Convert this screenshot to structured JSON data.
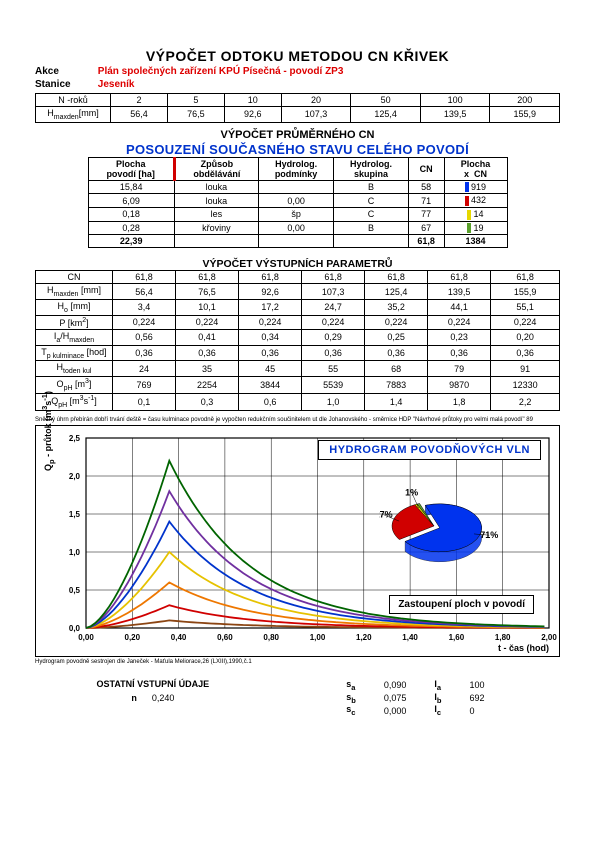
{
  "title": "VÝPOČET ODTOKU METODOU  CN  KŘIVEK",
  "meta": {
    "akce_label": "Akce",
    "akce_value": "Plán společných zařízení KPÚ Písečná - povodí ZP3",
    "stanice_label": "Stanice",
    "stanice_value": "Jeseník"
  },
  "top_table": {
    "rows": [
      {
        "label": "N -roků",
        "cells": [
          "2",
          "5",
          "10",
          "20",
          "50",
          "100",
          "200"
        ]
      },
      {
        "label": "Hmaxden[mm]",
        "cells": [
          "56,4",
          "76,5",
          "92,6",
          "107,3",
          "125,4",
          "139,5",
          "155,9"
        ]
      }
    ]
  },
  "section_avg": "VÝPOČET PRŮMĚRNÉHO CN",
  "section_blue": "POSOUZENÍ SOUČASNÉHO STAVU CELÉHO POVODÍ",
  "assess_table": {
    "headers": [
      "Plocha\npovodí [ha]",
      "Způsob\nobdělávání",
      "Hydrolog.\npodmínky",
      "Hydrolog.\nskupina",
      "CN",
      "Plocha\nx   CN"
    ],
    "rows": [
      {
        "cells": [
          "15,84",
          "louka",
          "",
          "B",
          "58",
          "919"
        ],
        "bar": "#0033ee"
      },
      {
        "cells": [
          "6,09",
          "louka",
          "0,00",
          "C",
          "71",
          "432"
        ],
        "bar": "#d00000"
      },
      {
        "cells": [
          "0,18",
          "les",
          "šp",
          "C",
          "77",
          "14"
        ],
        "bar": "#e6d800"
      },
      {
        "cells": [
          "0,28",
          "křoviny",
          "0,00",
          "B",
          "67",
          "19"
        ],
        "bar": "#5aa02c"
      }
    ],
    "totals": {
      "area": "22,39",
      "cn": "61,8",
      "xcn": "1384"
    }
  },
  "params_title": "VÝPOČET VÝSTUPNÍCH PARAMETRŮ",
  "params_table": {
    "labels": [
      "CN",
      "Hmaxden [mm]",
      "Ho [mm]",
      "P [km²]",
      "Ia/Hmaxden",
      "Tp kulminace [hod]",
      "Htoden kul",
      "OpH [m³]",
      "QpH [m³s⁻¹]"
    ],
    "rows": [
      [
        "61,8",
        "61,8",
        "61,8",
        "61,8",
        "61,8",
        "61,8",
        "61,8"
      ],
      [
        "56,4",
        "76,5",
        "92,6",
        "107,3",
        "125,4",
        "139,5",
        "155,9"
      ],
      [
        "3,4",
        "10,1",
        "17,2",
        "24,7",
        "35,2",
        "44,1",
        "55,1"
      ],
      [
        "0,224",
        "0,224",
        "0,224",
        "0,224",
        "0,224",
        "0,224",
        "0,224"
      ],
      [
        "0,56",
        "0,41",
        "0,34",
        "0,29",
        "0,25",
        "0,23",
        "0,20"
      ],
      [
        "0,36",
        "0,36",
        "0,36",
        "0,36",
        "0,36",
        "0,36",
        "0,36"
      ],
      [
        "24",
        "35",
        "45",
        "55",
        "68",
        "79",
        "91"
      ],
      [
        "769",
        "2254",
        "3844",
        "5539",
        "7883",
        "9870",
        "12330"
      ],
      [
        "0,1",
        "0,3",
        "0,6",
        "1,0",
        "1,4",
        "1,8",
        "2,2"
      ]
    ]
  },
  "chart": {
    "note_top": "Sněžný úhrn přebírán dobří trvání deště = času kulminace povodně je vypočten redukčním součinitelem ut dle Johanovského - směrnice HDP \"Návrhové průtoky pro velmi malá povodí\" 89",
    "title": "HYDROGRAM  POVODŇOVÝCH  VLN",
    "land_label": "Zastoupení  ploch  v  povodí",
    "x_label": "t - čas (hod)",
    "y_label": "Qp - průtok (m³s⁻¹)",
    "x_ticks": [
      "0,00",
      "0,20",
      "0,40",
      "0,60",
      "0,80",
      "1,00",
      "1,20",
      "1,40",
      "1,60",
      "1,80",
      "2,00"
    ],
    "y_ticks": [
      "0,0",
      "0,5",
      "1,0",
      "1,5",
      "2,0",
      "2,5"
    ],
    "series_colors": [
      "#8B4513",
      "#d00000",
      "#ee7700",
      "#e6c200",
      "#0033cc",
      "#7030a0",
      "#006400"
    ],
    "peak_values": [
      0.1,
      0.3,
      0.6,
      1.0,
      1.4,
      1.8,
      2.2
    ],
    "peak_x": 0.36,
    "xlim": [
      0,
      2.0
    ],
    "ylim": [
      0,
      2.5
    ],
    "grid_color": "#000",
    "pie": {
      "slices": [
        {
          "label": "71%",
          "value": 71,
          "color": "#0033ee"
        },
        {
          "label": "27%",
          "value": 27,
          "color": "#d00000"
        },
        {
          "label": "1%",
          "value": 1,
          "color": "#e6d800"
        },
        {
          "hidden": true,
          "value": 1,
          "color": "#5aa02c"
        }
      ]
    },
    "caption_bottom": "Hydrogram povodně sestrojen dle  Janeček - Maťula  Meliorace,26 (LXIII),1990,č.1"
  },
  "bottom": {
    "title": "OSTATNÍ VSTUPNÍ ÚDAJE",
    "n_label": "n",
    "n_value": "0,240",
    "rows": [
      {
        "s": "sₐ",
        "sv": "0,090",
        "i": "Iₐ",
        "iv": "100"
      },
      {
        "s": "s_b",
        "sv": "0,075",
        "i": "I_b",
        "iv": "692"
      },
      {
        "s": "s_c",
        "sv": "0,000",
        "i": "I_c",
        "iv": "0"
      }
    ]
  }
}
